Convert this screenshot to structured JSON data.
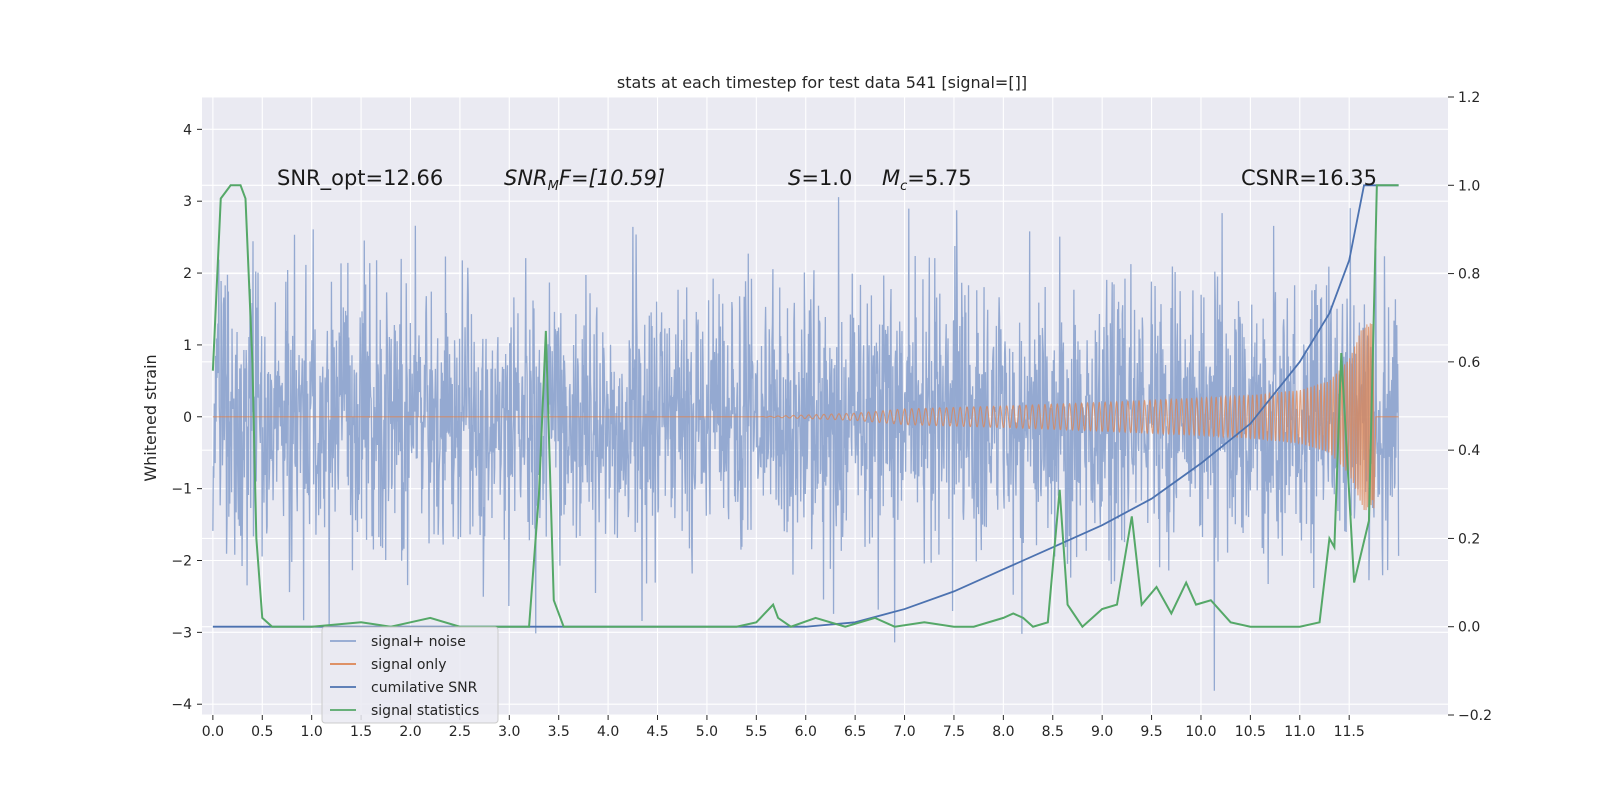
{
  "chart_data": {
    "type": "line",
    "title": "stats at each timestep for test data 541 [signal=[]]",
    "ylabel": "Whitened strain",
    "xlabel": "",
    "xlim": [
      -0.11,
      12.5
    ],
    "ylim": [
      -4.15,
      4.45
    ],
    "y2lim": [
      -0.2,
      1.2
    ],
    "grid": true,
    "x_ticks": [
      "0.0",
      "0.5",
      "1.0",
      "1.5",
      "2.0",
      "2.5",
      "3.0",
      "3.5",
      "4.0",
      "4.5",
      "5.0",
      "5.5",
      "6.0",
      "6.5",
      "7.0",
      "7.5",
      "8.0",
      "8.5",
      "9.0",
      "9.5",
      "10.0",
      "10.5",
      "11.0",
      "11.5"
    ],
    "y_ticks": [
      "4",
      "3",
      "2",
      "1",
      "0",
      "−1",
      "−2",
      "−3",
      "−4"
    ],
    "y2_ticks": [
      "1.2",
      "1.0",
      "0.8",
      "0.6",
      "0.4",
      "0.2",
      "0.0",
      "−0.2"
    ],
    "annotations": {
      "snr_opt": "SNR_opt=12.66",
      "snr_mf_main": "SNR",
      "snr_mf_sub": "M",
      "snr_mf_rest": "F=[10.59]",
      "s_sym": "S",
      "s_val": "=1.0",
      "mc_sym": "M",
      "mc_sub": "c",
      "mc_val": "=5.75",
      "csnr": "CSNR=16.35"
    },
    "legend_position": "lower-left",
    "series": [
      {
        "name": "signal+ noise",
        "color": "#8fa5cf",
        "axis": "left",
        "x_range": [
          0,
          12
        ],
        "envelope_typical": 2.2,
        "envelope_max": 4.1
      },
      {
        "name": "signal only",
        "color": "#dd8452",
        "axis": "left",
        "chirp": {
          "start": 5.3,
          "end": 11.75,
          "amplitude_points": [
            [
              5.5,
              0.0
            ],
            [
              6.5,
              0.05
            ],
            [
              7.0,
              0.11
            ],
            [
              8.0,
              0.15
            ],
            [
              9.0,
              0.2
            ],
            [
              10.0,
              0.26
            ],
            [
              10.5,
              0.3
            ],
            [
              11.0,
              0.37
            ],
            [
              11.3,
              0.5
            ],
            [
              11.5,
              0.8
            ],
            [
              11.65,
              1.3
            ]
          ]
        }
      },
      {
        "name": "cumilative SNR",
        "color": "#4c72b0",
        "axis": "right",
        "x": [
          0,
          6.0,
          6.5,
          7.0,
          7.5,
          8.0,
          8.5,
          9.0,
          9.5,
          10.0,
          10.5,
          11.0,
          11.3,
          11.5,
          11.65,
          12.0
        ],
        "y": [
          0.0,
          0.0,
          0.01,
          0.04,
          0.08,
          0.13,
          0.18,
          0.23,
          0.29,
          0.37,
          0.46,
          0.6,
          0.71,
          0.83,
          1.0,
          1.0
        ]
      },
      {
        "name": "signal statistics",
        "color": "#55a868",
        "axis": "right",
        "x": [
          0,
          0.08,
          0.18,
          0.28,
          0.33,
          0.4,
          0.44,
          0.5,
          0.6,
          1.0,
          1.5,
          1.8,
          2.0,
          2.2,
          2.5,
          3.2,
          3.3,
          3.37,
          3.45,
          3.55,
          4.0,
          5.3,
          5.5,
          5.67,
          5.72,
          5.85,
          6.1,
          6.4,
          6.7,
          6.9,
          7.2,
          7.5,
          7.7,
          8.0,
          8.1,
          8.2,
          8.3,
          8.45,
          8.57,
          8.65,
          8.8,
          9.0,
          9.15,
          9.3,
          9.4,
          9.55,
          9.7,
          9.85,
          9.95,
          10.1,
          10.3,
          10.5,
          10.8,
          11.0,
          11.2,
          11.3,
          11.35,
          11.42,
          11.55,
          11.7,
          11.78,
          11.87,
          12.0
        ],
        "y": [
          0.58,
          0.97,
          1.0,
          1.0,
          0.97,
          0.6,
          0.2,
          0.02,
          0.0,
          0.0,
          0.01,
          0.0,
          0.01,
          0.02,
          0.0,
          0.0,
          0.3,
          0.67,
          0.06,
          0.0,
          0.0,
          0.0,
          0.01,
          0.05,
          0.02,
          0.0,
          0.02,
          0.0,
          0.02,
          0.0,
          0.01,
          0.0,
          0.0,
          0.02,
          0.03,
          0.02,
          0.0,
          0.01,
          0.31,
          0.05,
          0.0,
          0.04,
          0.05,
          0.25,
          0.05,
          0.09,
          0.03,
          0.1,
          0.05,
          0.06,
          0.01,
          0.0,
          0.0,
          0.0,
          0.01,
          0.2,
          0.18,
          0.62,
          0.1,
          0.24,
          1.0,
          1.0,
          1.0
        ]
      }
    ]
  }
}
